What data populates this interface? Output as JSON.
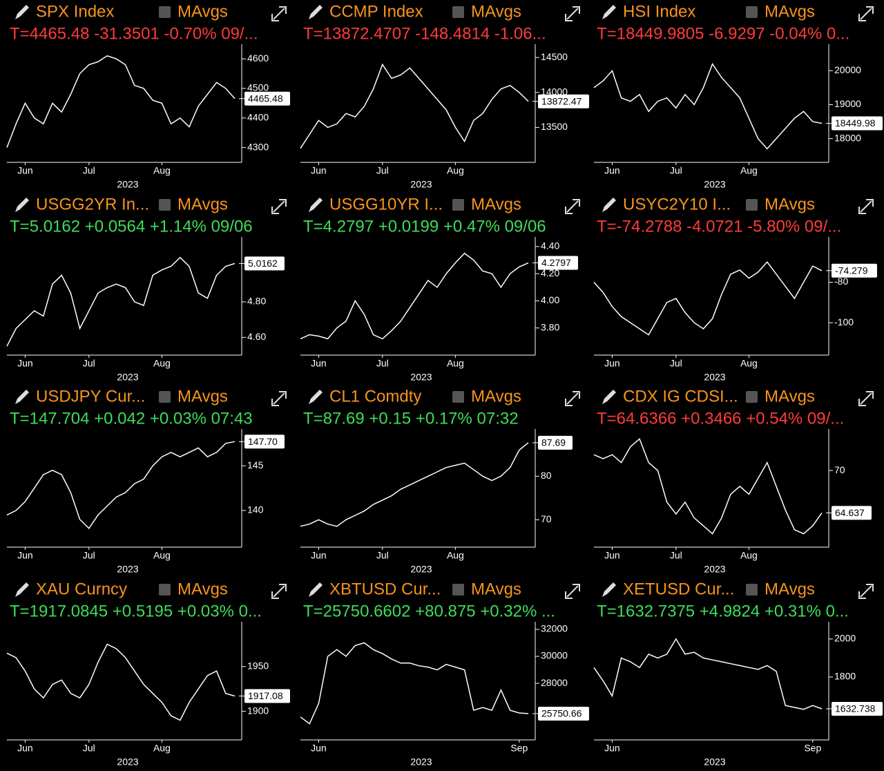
{
  "chart_data": [
    {
      "type": "line",
      "title": "SPX Index",
      "button": "MAvgs",
      "quote": "T=4465.48 -31.3501 -0.70% 09/...",
      "quote_color": "#ff3b3b",
      "color": "#ffffff",
      "x_label": "2023",
      "categories": [
        null,
        null,
        "Jun",
        null,
        null,
        null,
        null,
        null,
        null,
        "Jul",
        null,
        null,
        null,
        null,
        null,
        null,
        null,
        "Aug",
        null,
        null,
        null,
        null,
        null,
        null,
        null,
        null
      ],
      "values": [
        4300,
        4380,
        4450,
        4400,
        4380,
        4450,
        4420,
        4480,
        4550,
        4580,
        4590,
        4610,
        4600,
        4580,
        4510,
        4500,
        4460,
        4450,
        4380,
        4400,
        4370,
        4440,
        4480,
        4520,
        4500,
        4465.48
      ],
      "last_label": "4465.48",
      "ylim": [
        4250,
        4640
      ],
      "yticks": [
        4300,
        4400,
        4500,
        4600
      ]
    },
    {
      "type": "line",
      "title": "CCMP Index",
      "button": "MAvgs",
      "quote": "T=13872.4707 -148.4814 -1.06...",
      "quote_color": "#ff3b3b",
      "color": "#ffffff",
      "x_label": "2023",
      "categories": [
        null,
        null,
        "Jun",
        null,
        null,
        null,
        null,
        null,
        null,
        "Jul",
        null,
        null,
        null,
        null,
        null,
        null,
        null,
        "Aug",
        null,
        null,
        null,
        null,
        null,
        null,
        null,
        null
      ],
      "values": [
        13200,
        13400,
        13600,
        13500,
        13550,
        13700,
        13650,
        13800,
        14050,
        14400,
        14200,
        14250,
        14350,
        14200,
        14050,
        13900,
        13750,
        13500,
        13300,
        13600,
        13700,
        13900,
        14050,
        14100,
        14000,
        13872.47
      ],
      "last_label": "13872.47",
      "ylim": [
        13000,
        14650
      ],
      "yticks": [
        13500,
        14000,
        14500
      ]
    },
    {
      "type": "line",
      "title": "HSI Index",
      "button": "MAvgs",
      "quote": "T=18449.9805 -6.9297 -0.04% 0...",
      "quote_color": "#ff3b3b",
      "color": "#ffffff",
      "x_label": "2023",
      "categories": [
        null,
        null,
        "Jun",
        null,
        null,
        null,
        null,
        null,
        null,
        "Jul",
        null,
        null,
        null,
        null,
        null,
        null,
        null,
        "Aug",
        null,
        null,
        null,
        null,
        null,
        null,
        null,
        null
      ],
      "values": [
        19500,
        19700,
        20000,
        19200,
        19100,
        19300,
        18800,
        19100,
        19200,
        18900,
        19300,
        19000,
        19500,
        20200,
        19800,
        19500,
        19200,
        18600,
        18000,
        17700,
        18000,
        18300,
        18600,
        18800,
        18500,
        18449.98
      ],
      "last_label": "18449.98",
      "ylim": [
        17300,
        20700
      ],
      "yticks": [
        18000,
        19000,
        20000
      ]
    },
    {
      "type": "line",
      "title": "USGG2YR In...",
      "button": "MAvgs",
      "quote": "T=5.0162 +0.0564 +1.14% 09/06",
      "quote_color": "#3ddc5a",
      "color": "#ffffff",
      "x_label": "2023",
      "categories": [
        null,
        null,
        "Jun",
        null,
        null,
        null,
        null,
        null,
        null,
        "Jul",
        null,
        null,
        null,
        null,
        null,
        null,
        null,
        "Aug",
        null,
        null,
        null,
        null,
        null,
        null,
        null,
        null
      ],
      "values": [
        4.55,
        4.65,
        4.7,
        4.75,
        4.72,
        4.9,
        4.95,
        4.85,
        4.65,
        4.75,
        4.85,
        4.88,
        4.9,
        4.88,
        4.8,
        4.78,
        4.95,
        4.98,
        5.0,
        5.05,
        5.0,
        4.85,
        4.82,
        4.95,
        5.0,
        5.0162
      ],
      "last_label": "5.0162",
      "ylim": [
        4.5,
        5.15
      ],
      "yticks": [
        {
          "value": 4.6,
          "label": "4.60"
        },
        {
          "value": 4.8,
          "label": "4.80"
        }
      ]
    },
    {
      "type": "line",
      "title": "USGG10YR I...",
      "button": "MAvgs",
      "quote": "T=4.2797 +0.0199 +0.47% 09/06",
      "quote_color": "#3ddc5a",
      "color": "#ffffff",
      "x_label": "2023",
      "categories": [
        null,
        null,
        "Jun",
        null,
        null,
        null,
        null,
        null,
        null,
        "Jul",
        null,
        null,
        null,
        null,
        null,
        null,
        null,
        "Aug",
        null,
        null,
        null,
        null,
        null,
        null,
        null,
        null
      ],
      "values": [
        3.72,
        3.75,
        3.74,
        3.72,
        3.8,
        3.85,
        4.0,
        3.9,
        3.75,
        3.72,
        3.78,
        3.85,
        3.95,
        4.05,
        4.15,
        4.1,
        4.2,
        4.28,
        4.35,
        4.3,
        4.22,
        4.2,
        4.1,
        4.2,
        4.25,
        4.2797
      ],
      "last_label": "4.2797",
      "ylim": [
        3.6,
        4.45
      ],
      "yticks": [
        {
          "value": 3.8,
          "label": "3.80"
        },
        {
          "value": 4.0,
          "label": "4.00"
        },
        {
          "value": 4.2,
          "label": "4.20"
        },
        {
          "value": 4.4,
          "label": "4.40"
        }
      ]
    },
    {
      "type": "line",
      "title": "USYC2Y10 I...",
      "button": "MAvgs",
      "quote": "T=-74.2788 -4.0721 -5.80% 09/...",
      "quote_color": "#ff3b3b",
      "color": "#ffffff",
      "x_label": "2023",
      "categories": [
        null,
        null,
        "Jun",
        null,
        null,
        null,
        null,
        null,
        null,
        "Jul",
        null,
        null,
        null,
        null,
        null,
        null,
        null,
        "Aug",
        null,
        null,
        null,
        null,
        null,
        null,
        null,
        null
      ],
      "values": [
        -80,
        -85,
        -92,
        -97,
        -100,
        -103,
        -106,
        -98,
        -90,
        -88,
        -95,
        -100,
        -103,
        -98,
        -86,
        -76,
        -74,
        -78,
        -75,
        -70,
        -76,
        -82,
        -88,
        -80,
        -72,
        -74.279
      ],
      "last_label": "-74.279",
      "ylim": [
        -116,
        -59
      ],
      "yticks": [
        -100,
        -80
      ]
    },
    {
      "type": "line",
      "title": "USDJPY Cur...",
      "button": "MAvgs",
      "quote": "T=147.704 +0.042 +0.03% 07:43",
      "quote_color": "#3ddc5a",
      "color": "#ffffff",
      "x_label": "2023",
      "categories": [
        null,
        null,
        "Jun",
        null,
        null,
        null,
        null,
        null,
        null,
        "Jul",
        null,
        null,
        null,
        null,
        null,
        null,
        null,
        "Aug",
        null,
        null,
        null,
        null,
        null,
        null,
        null,
        null
      ],
      "values": [
        139.5,
        140,
        141,
        142.5,
        144,
        144.5,
        144,
        142,
        139,
        138,
        139.5,
        140.5,
        141.5,
        142,
        143,
        143.5,
        145,
        146,
        146.5,
        146,
        146.5,
        147,
        146,
        146.5,
        147.5,
        147.7
      ],
      "last_label": "147.70",
      "ylim": [
        135.9,
        148.8
      ],
      "yticks": [
        140,
        145
      ]
    },
    {
      "type": "line",
      "title": "CL1 Comdty",
      "button": "MAvgs",
      "quote": "T=87.69 +0.15 +0.17% 07:32",
      "quote_color": "#3ddc5a",
      "color": "#ffffff",
      "x_label": "2023",
      "categories": [
        null,
        null,
        "Jun",
        null,
        null,
        null,
        null,
        null,
        null,
        "Jul",
        null,
        null,
        null,
        null,
        null,
        null,
        null,
        "Aug",
        null,
        null,
        null,
        null,
        null,
        null,
        null,
        null
      ],
      "values": [
        68.5,
        69,
        70,
        69,
        68.5,
        70,
        71,
        72,
        73.5,
        74.5,
        75.5,
        77,
        78,
        79,
        80,
        81,
        82,
        82.5,
        83,
        81.5,
        80,
        79,
        80,
        82,
        86,
        87.69
      ],
      "last_label": "87.69",
      "ylim": [
        63.7,
        90.2
      ],
      "yticks": [
        70,
        80
      ]
    },
    {
      "type": "line",
      "title": "CDX IG CDSI...",
      "button": "MAvgs",
      "quote": "T=64.6366 +0.3466 +0.54% 09/...",
      "quote_color": "#ff3b3b",
      "color": "#ffffff",
      "x_label": "2023",
      "categories": [
        null,
        null,
        "Jun",
        null,
        null,
        null,
        null,
        null,
        null,
        "Jul",
        null,
        null,
        null,
        null,
        null,
        null,
        null,
        "Aug",
        null,
        null,
        null,
        null,
        null,
        null,
        null,
        null
      ],
      "values": [
        72,
        71.5,
        72,
        71,
        73,
        74,
        71,
        70,
        66,
        64.5,
        66,
        64,
        63,
        62,
        64,
        67,
        68,
        67,
        69,
        71,
        68,
        65,
        62.5,
        62,
        63,
        64.637
      ],
      "last_label": "64.637",
      "ylim": [
        60.3,
        74.9
      ],
      "yticks": [
        70
      ]
    },
    {
      "type": "line",
      "title": "XAU Curncy",
      "button": "MAvgs",
      "quote": "T=1917.0845 +0.5195 +0.03% 0...",
      "quote_color": "#3ddc5a",
      "color": "#ffffff",
      "x_label": "2023",
      "categories": [
        null,
        null,
        "Jun",
        null,
        null,
        null,
        null,
        null,
        null,
        "Jul",
        null,
        null,
        null,
        null,
        null,
        null,
        null,
        "Aug",
        null,
        null,
        null,
        null,
        null,
        null,
        null,
        null
      ],
      "values": [
        1965,
        1960,
        1945,
        1925,
        1915,
        1930,
        1935,
        1920,
        1915,
        1930,
        1955,
        1975,
        1970,
        1960,
        1945,
        1930,
        1920,
        1910,
        1895,
        1890,
        1910,
        1925,
        1940,
        1945,
        1920,
        1917.08
      ],
      "last_label": "1917.08",
      "ylim": [
        1868,
        1997
      ],
      "yticks": [
        1900,
        1950
      ]
    },
    {
      "type": "line",
      "title": "XBTUSD Cur...",
      "button": "MAvgs",
      "quote": "T=25750.6602 +80.875 +0.32% ...",
      "quote_color": "#3ddc5a",
      "color": "#ffffff",
      "x_label": "2023",
      "categories": [
        null,
        null,
        "Jun",
        null,
        null,
        null,
        null,
        null,
        null,
        null,
        null,
        null,
        null,
        null,
        null,
        null,
        null,
        null,
        null,
        null,
        null,
        null,
        null,
        null,
        "Sep",
        null
      ],
      "values": [
        25500,
        25000,
        26500,
        30000,
        30500,
        30000,
        30800,
        31000,
        30500,
        30200,
        29800,
        29500,
        29500,
        29300,
        29200,
        29000,
        29400,
        29200,
        29000,
        26000,
        26200,
        26000,
        27500,
        26000,
        25800,
        25750.66
      ],
      "last_label": "25750.66",
      "ylim": [
        23800,
        32360
      ],
      "yticks": [
        28000,
        30000,
        32000
      ]
    },
    {
      "type": "line",
      "title": "XETUSD Cur...",
      "button": "MAvgs",
      "quote": "T=1632.7375 +4.9824 +0.31% 0...",
      "quote_color": "#3ddc5a",
      "color": "#ffffff",
      "x_label": "2023",
      "categories": [
        null,
        null,
        "Jun",
        null,
        null,
        null,
        null,
        null,
        null,
        null,
        null,
        null,
        null,
        null,
        null,
        null,
        null,
        null,
        null,
        null,
        null,
        null,
        null,
        null,
        "Sep",
        null
      ],
      "values": [
        1850,
        1780,
        1700,
        1900,
        1880,
        1850,
        1920,
        1900,
        1920,
        2000,
        1920,
        1930,
        1900,
        1890,
        1880,
        1870,
        1860,
        1850,
        1840,
        1860,
        1830,
        1650,
        1640,
        1630,
        1650,
        1632.738
      ],
      "last_label": "1632.738",
      "ylim": [
        1469,
        2076
      ],
      "yticks": [
        1800,
        2000
      ]
    }
  ]
}
